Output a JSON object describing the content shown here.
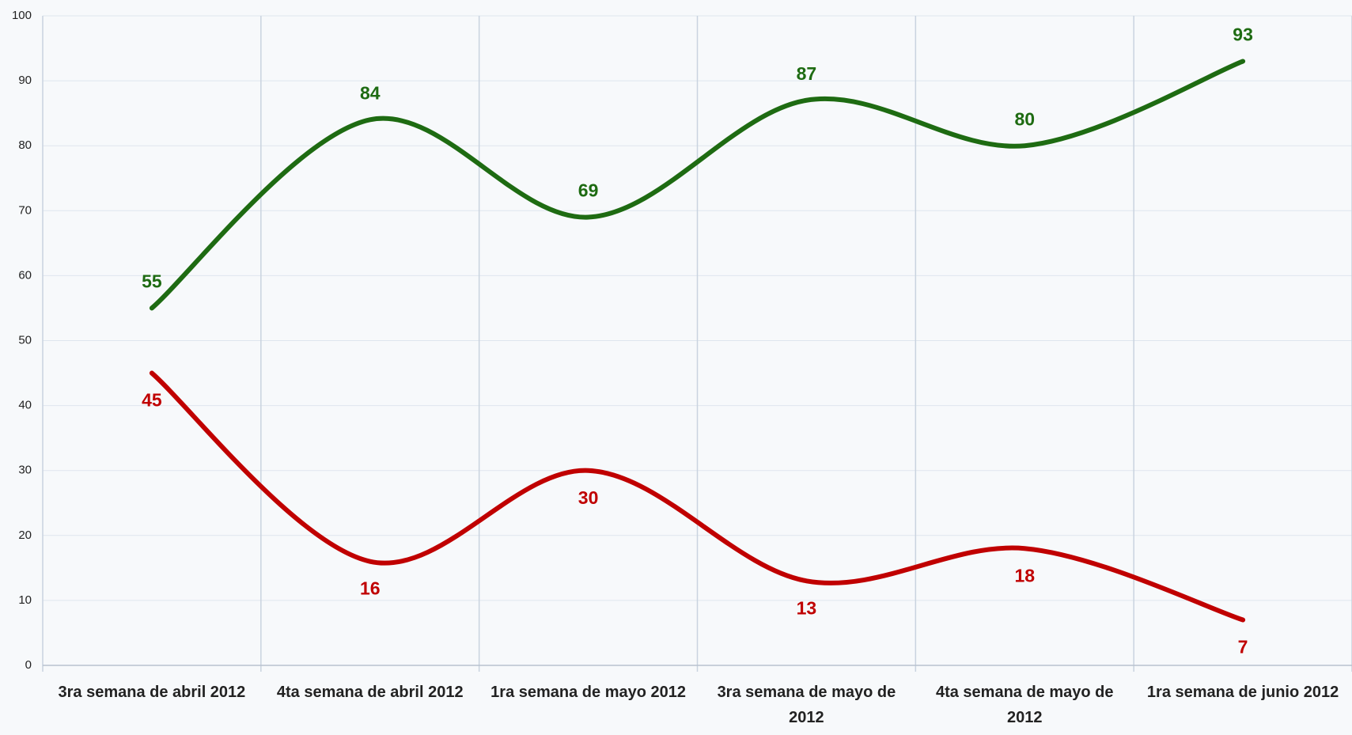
{
  "chart_data": {
    "type": "line",
    "categories": [
      "3ra semana de abril 2012",
      "4ta semana de abril 2012",
      "1ra semana de mayo 2012",
      "3ra semana de mayo de 2012",
      "4ta semana de mayo de 2012",
      "1ra semana de junio 2012"
    ],
    "series": [
      {
        "color": "#1e6b12",
        "values": [
          55,
          84,
          69,
          87,
          80,
          93
        ]
      },
      {
        "color": "#c00000",
        "values": [
          45,
          16,
          30,
          13,
          18,
          7
        ]
      }
    ],
    "ylim": [
      0,
      100
    ],
    "yticks": [
      0,
      10,
      20,
      30,
      40,
      50,
      60,
      70,
      80,
      90,
      100
    ],
    "grid": true,
    "smooth": true
  }
}
